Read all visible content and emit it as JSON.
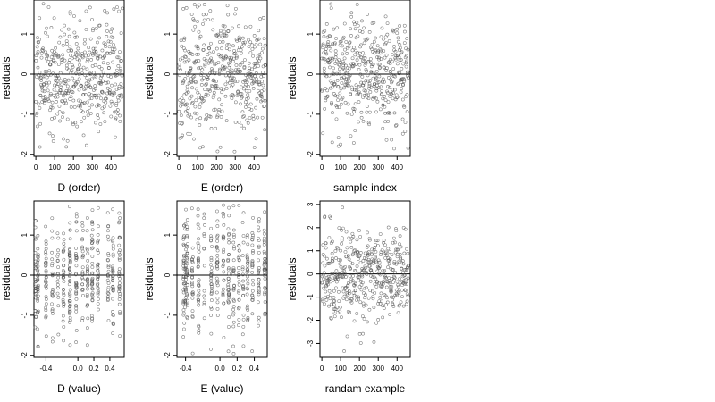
{
  "chart_data": [
    {
      "type": "scatter",
      "title": "",
      "xlabel": "D (order)",
      "ylabel": "residuals",
      "xlim": [
        -10,
        470
      ],
      "ylim": [
        -2.05,
        1.85
      ],
      "xticks": [
        0,
        100,
        200,
        300,
        400
      ],
      "yticks": [
        -2,
        -1,
        0,
        1
      ],
      "ytick_labels": [
        "-2",
        "-1",
        "0",
        "1"
      ],
      "reference_line_y": 0,
      "grid": false,
      "n_points": 460,
      "x_kind": "index",
      "seed": 11
    },
    {
      "type": "scatter",
      "title": "",
      "xlabel": "E (order)",
      "ylabel": "residuals",
      "xlim": [
        -10,
        470
      ],
      "ylim": [
        -2.05,
        1.85
      ],
      "xticks": [
        0,
        100,
        200,
        300,
        400
      ],
      "yticks": [
        -2,
        -1,
        0,
        1
      ],
      "ytick_labels": [
        "-2",
        "-1",
        "0",
        "1"
      ],
      "reference_line_y": 0,
      "grid": false,
      "n_points": 460,
      "x_kind": "index",
      "seed": 23
    },
    {
      "type": "scatter",
      "title": "",
      "xlabel": "sample index",
      "ylabel": "residuals",
      "xlim": [
        -10,
        470
      ],
      "ylim": [
        -2.05,
        1.85
      ],
      "xticks": [
        0,
        100,
        200,
        300,
        400
      ],
      "yticks": [
        -2,
        -1,
        0,
        1
      ],
      "ytick_labels": [
        "-2",
        "-1",
        "0",
        "1"
      ],
      "reference_line_y": 0,
      "grid": false,
      "n_points": 460,
      "x_kind": "index",
      "seed": 37
    },
    {
      "type": "scatter",
      "title": "",
      "xlabel": "D (value)",
      "ylabel": "residuals",
      "xlim": [
        -0.55,
        0.58
      ],
      "ylim": [
        -2.05,
        1.85
      ],
      "xticks": [
        -0.4,
        0,
        0.2,
        0.4
      ],
      "xtick_labels": [
        "-0.4",
        "0.0",
        "0.2",
        "0.4"
      ],
      "yticks": [
        -2,
        -1,
        0,
        1
      ],
      "ytick_labels": [
        "-2",
        "-1",
        "0",
        "1"
      ],
      "reference_line_y": 0,
      "grid": false,
      "n_points": 460,
      "x_kind": "columns",
      "x_columns": [
        -0.53,
        -0.5,
        -0.4,
        -0.32,
        -0.25,
        -0.18,
        -0.1,
        -0.02,
        0.06,
        0.12,
        0.18,
        0.25,
        0.38,
        0.44,
        0.52
      ],
      "seed": 51
    },
    {
      "type": "scatter",
      "title": "",
      "xlabel": "E (value)",
      "ylabel": "residuals",
      "xlim": [
        -0.5,
        0.55
      ],
      "ylim": [
        -2.05,
        1.85
      ],
      "xticks": [
        -0.4,
        0,
        0.2,
        0.4
      ],
      "xtick_labels": [
        "-0.4",
        "0.0",
        "0.2",
        "0.4"
      ],
      "yticks": [
        -2,
        -1,
        0,
        1
      ],
      "ytick_labels": [
        "-2",
        "-1",
        "0",
        "1"
      ],
      "reference_line_y": 0,
      "grid": false,
      "n_points": 460,
      "x_kind": "columns",
      "x_columns": [
        -0.42,
        -0.4,
        -0.38,
        -0.32,
        -0.25,
        -0.18,
        -0.1,
        -0.03,
        0.04,
        0.1,
        0.16,
        0.22,
        0.27,
        0.32,
        0.38,
        0.45,
        0.52
      ],
      "seed": 67
    },
    {
      "type": "scatter",
      "title": "",
      "xlabel": "randam example",
      "ylabel": "residuals",
      "xlim": [
        -10,
        470
      ],
      "ylim": [
        -3.6,
        3.15
      ],
      "xticks": [
        0,
        100,
        200,
        300,
        400
      ],
      "yticks": [
        -3,
        -2,
        -1,
        0,
        1,
        2,
        3
      ],
      "ytick_labels": [
        "-3",
        "-2",
        "-1",
        "0",
        "1",
        "2",
        "3"
      ],
      "reference_line_y": 0,
      "grid": false,
      "n_points": 460,
      "x_kind": "index",
      "spread": 1.0,
      "seed": 83
    }
  ]
}
